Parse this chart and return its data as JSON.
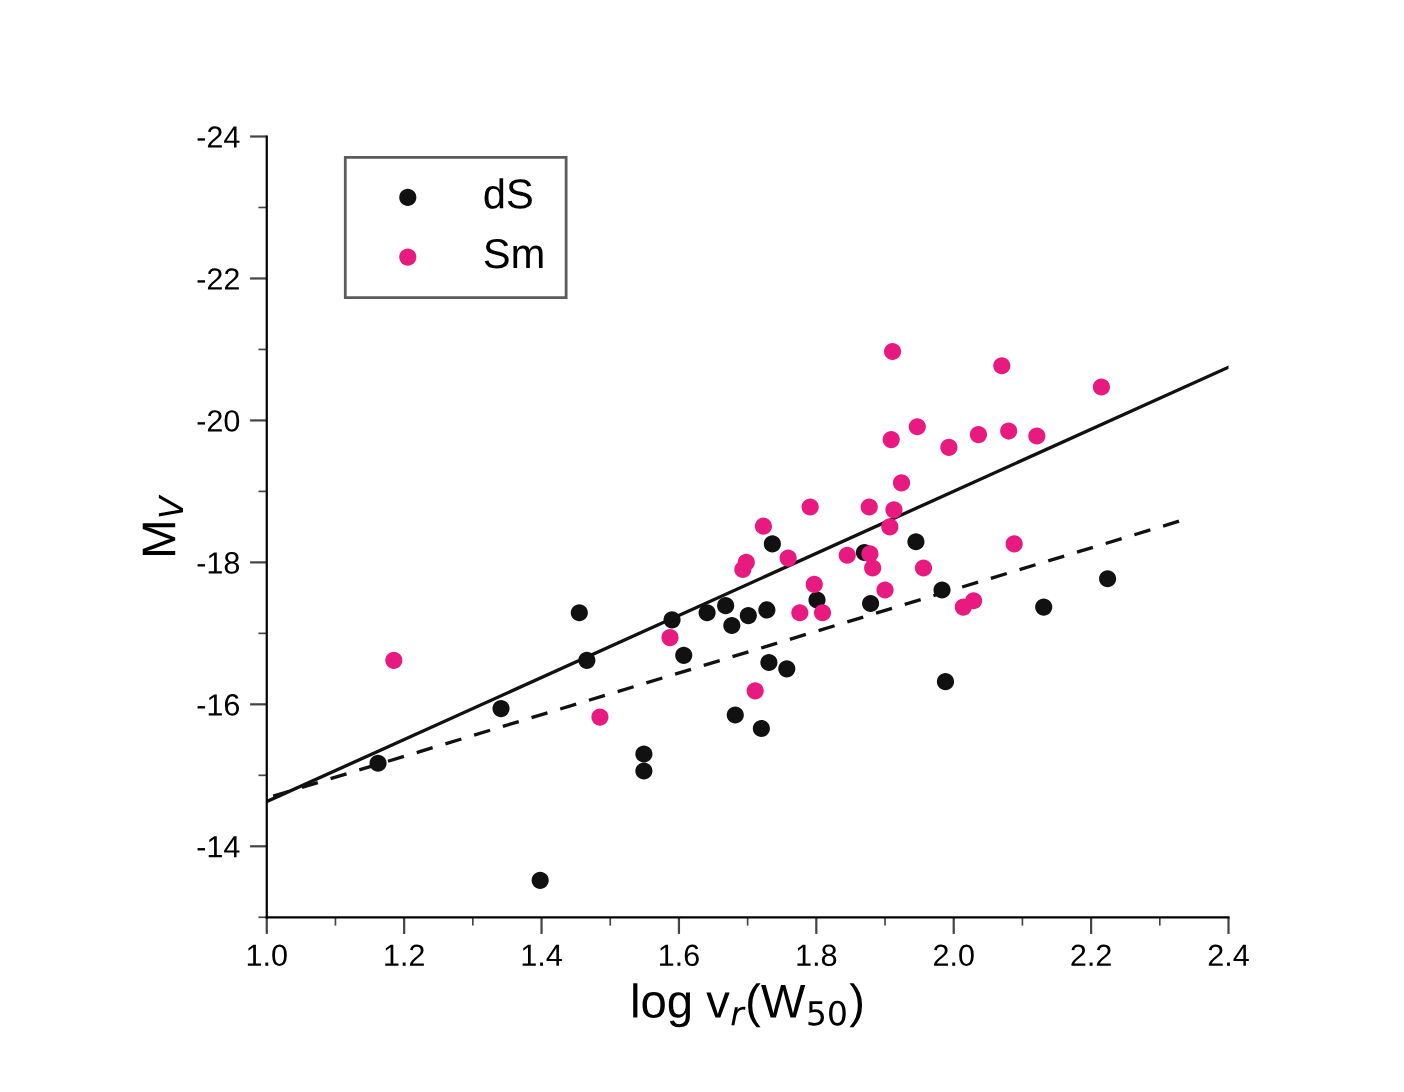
{
  "chart_data": {
    "type": "scatter",
    "xlabel": "log v$_{r}$(W$_{50}$)",
    "ylabel": "M$_{V}$",
    "xlim": [
      1.0,
      2.4
    ],
    "xticks": [
      {
        "value": 1,
        "label": "1.0"
      },
      1.2,
      1.4,
      1.6,
      1.8,
      {
        "value": 2,
        "label": "2.0"
      },
      2.2,
      2.4
    ],
    "ylim": [
      -13,
      -24
    ],
    "yticks": [
      -14,
      -16,
      -18,
      -20,
      -22,
      -24
    ],
    "grid": false,
    "legend": "top left",
    "marker": "circle",
    "series": [
      {
        "name": "dS",
        "color": "#111111",
        "x": [
          1.162,
          1.341,
          1.398,
          1.455,
          1.466,
          1.549,
          1.549,
          1.59,
          1.607,
          1.641,
          1.668,
          1.677,
          1.682,
          1.701,
          1.72,
          1.728,
          1.731,
          1.736,
          1.757,
          1.801,
          1.87,
          1.879,
          1.945,
          1.983,
          1.988,
          2.131,
          2.224
        ],
        "values": [
          -15.17,
          -15.94,
          -13.52,
          -17.29,
          -16.62,
          -15.3,
          -15.06,
          -17.19,
          -16.69,
          -17.29,
          -17.39,
          -17.11,
          -15.85,
          -17.25,
          -15.66,
          -17.33,
          -16.59,
          -18.26,
          -16.5,
          -17.47,
          -18.14,
          -17.42,
          -18.29,
          -17.61,
          -16.32,
          -17.37,
          -17.77
        ]
      },
      {
        "name": "Sm",
        "color": "#e8197f",
        "x": [
          1.185,
          1.485,
          1.587,
          1.693,
          1.698,
          1.711,
          1.723,
          1.759,
          1.776,
          1.791,
          1.797,
          1.809,
          1.845,
          1.877,
          1.878,
          1.882,
          1.9,
          1.907,
          1.909,
          1.911,
          1.913,
          1.924,
          1.947,
          1.956,
          1.993,
          2.014,
          2.029,
          2.036,
          2.07,
          2.08,
          2.088,
          2.121,
          2.215
        ],
        "values": [
          -16.62,
          -15.82,
          -16.94,
          -17.9,
          -18.0,
          -16.19,
          -18.51,
          -18.06,
          -17.29,
          -18.78,
          -17.69,
          -17.29,
          -18.1,
          -18.78,
          -18.12,
          -17.92,
          -17.61,
          -18.5,
          -19.73,
          -20.97,
          -18.74,
          -19.12,
          -19.91,
          -17.92,
          -19.62,
          -17.37,
          -17.46,
          -19.8,
          -20.77,
          -19.85,
          -18.26,
          -19.78,
          -20.47
        ]
      },
      {
        "type": "line",
        "color": "#111111",
        "line_style": "solid",
        "marker": "none",
        "x": [
          1.0,
          2.4
        ],
        "values": [
          -14.63,
          -20.75
        ]
      },
      {
        "type": "line",
        "color": "#111111",
        "line_style": "dashed",
        "marker": "none",
        "x": [
          1.0,
          2.328
        ],
        "values": [
          -14.68,
          -18.58
        ]
      }
    ]
  }
}
